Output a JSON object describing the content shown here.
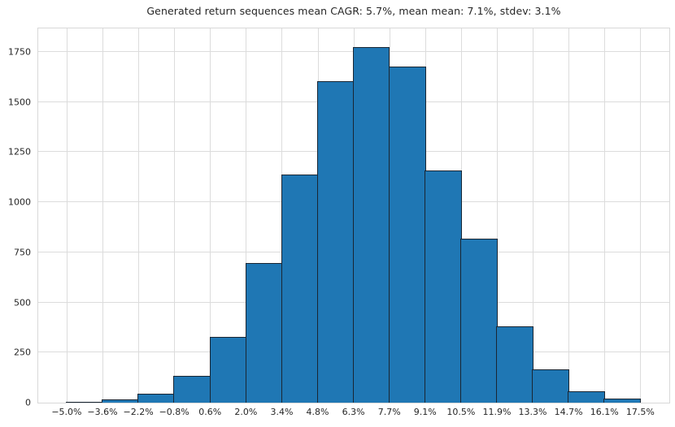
{
  "title": "Generated return sequences mean CAGR: 5.7%, mean mean: 7.1%, stdev: 3.1%",
  "chart_data": {
    "type": "bar",
    "subtype": "histogram",
    "title": "Generated return sequences mean CAGR: 5.7%, mean mean: 7.1%, stdev: 3.1%",
    "xlabel": "",
    "ylabel": "",
    "bin_edge_labels": [
      "−5.0%",
      "−3.6%",
      "−2.2%",
      "−0.8%",
      "0.6%",
      "2.0%",
      "3.4%",
      "4.8%",
      "6.3%",
      "7.7%",
      "9.1%",
      "10.5%",
      "11.9%",
      "13.3%",
      "14.7%",
      "16.1%",
      "17.5%"
    ],
    "bin_edges_pct": [
      -5.0,
      -3.6,
      -2.2,
      -0.8,
      0.6,
      2.0,
      3.4,
      4.8,
      6.3,
      7.7,
      9.1,
      10.5,
      11.9,
      13.3,
      14.7,
      16.1,
      17.5
    ],
    "values": [
      5,
      15,
      45,
      135,
      330,
      695,
      1140,
      1605,
      1775,
      1675,
      1160,
      820,
      380,
      165,
      55,
      20
    ],
    "y_ticks": [
      0,
      250,
      500,
      750,
      1000,
      1250,
      1500,
      1750
    ],
    "ylim": [
      0,
      1867
    ],
    "xlim_pct": [
      -6.1,
      18.6
    ],
    "grid": "both",
    "legend": "none",
    "colors": {
      "bar_fill": "#1f77b4",
      "bar_edge": "#1a2633",
      "grid": "#dcdcdc",
      "spine": "#d8d8d8",
      "text": "#262626",
      "background": "#ffffff"
    }
  }
}
